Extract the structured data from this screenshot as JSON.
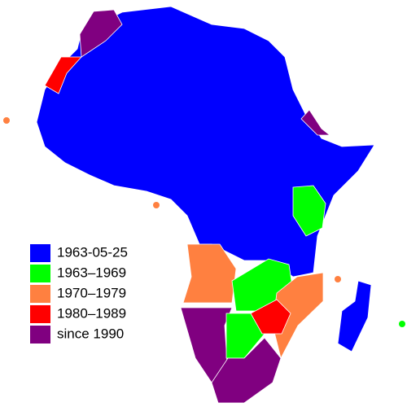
{
  "legend": [
    {
      "label": "1963-05-25",
      "color": "#0000ff"
    },
    {
      "label": "1963–1969",
      "color": "#00ff00"
    },
    {
      "label": "1970–1979",
      "color": "#ff8040"
    },
    {
      "label": "1980–1989",
      "color": "#ff0000"
    },
    {
      "label": "since 1990",
      "color": "#800080"
    }
  ]
}
